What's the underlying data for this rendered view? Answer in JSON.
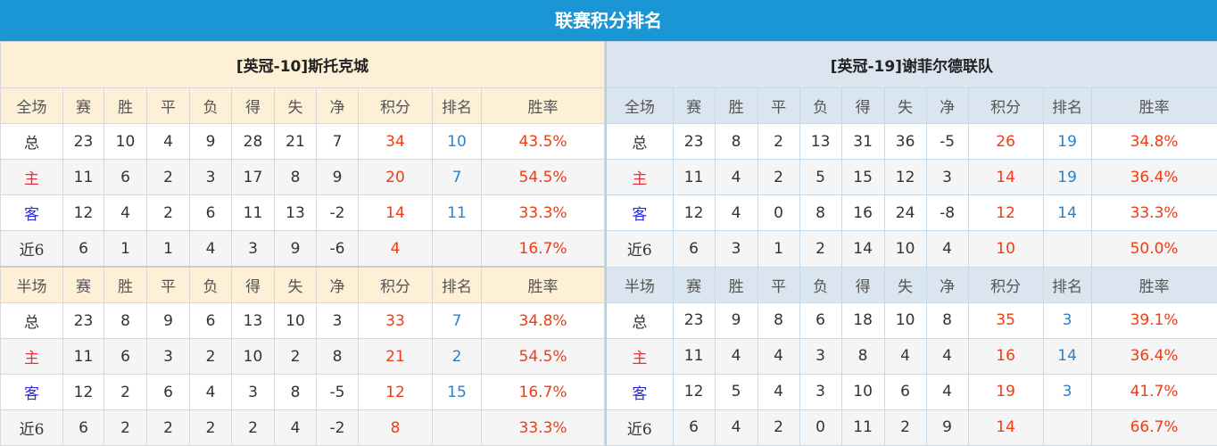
{
  "title": "联赛积分排名",
  "colors": {
    "title_bar": "#1a96d4",
    "points": "#f03c14",
    "rank": "#2e7fc7",
    "home": "#e8303a",
    "away": "#2a2ae0"
  },
  "columns": [
    "赛",
    "胜",
    "平",
    "负",
    "得",
    "失",
    "净",
    "积分",
    "排名",
    "胜率"
  ],
  "teams": [
    {
      "name": "[英冠-10]斯托克城",
      "sections": [
        {
          "label": "全场",
          "rows": [
            [
              "总",
              "23",
              "10",
              "4",
              "9",
              "28",
              "21",
              "7",
              "34",
              "10",
              "43.5%"
            ],
            [
              "主",
              "11",
              "6",
              "2",
              "3",
              "17",
              "8",
              "9",
              "20",
              "7",
              "54.5%"
            ],
            [
              "客",
              "12",
              "4",
              "2",
              "6",
              "11",
              "13",
              "-2",
              "14",
              "11",
              "33.3%"
            ],
            [
              "近6",
              "6",
              "1",
              "1",
              "4",
              "3",
              "9",
              "-6",
              "4",
              "",
              "16.7%"
            ]
          ]
        },
        {
          "label": "半场",
          "rows": [
            [
              "总",
              "23",
              "8",
              "9",
              "6",
              "13",
              "10",
              "3",
              "33",
              "7",
              "34.8%"
            ],
            [
              "主",
              "11",
              "6",
              "3",
              "2",
              "10",
              "2",
              "8",
              "21",
              "2",
              "54.5%"
            ],
            [
              "客",
              "12",
              "2",
              "6",
              "4",
              "3",
              "8",
              "-5",
              "12",
              "15",
              "16.7%"
            ],
            [
              "近6",
              "6",
              "2",
              "2",
              "2",
              "2",
              "4",
              "-2",
              "8",
              "",
              "33.3%"
            ]
          ]
        }
      ]
    },
    {
      "name": "[英冠-19]谢菲尔德联队",
      "sections": [
        {
          "label": "全场",
          "rows": [
            [
              "总",
              "23",
              "8",
              "2",
              "13",
              "31",
              "36",
              "-5",
              "26",
              "19",
              "34.8%"
            ],
            [
              "主",
              "11",
              "4",
              "2",
              "5",
              "15",
              "12",
              "3",
              "14",
              "19",
              "36.4%"
            ],
            [
              "客",
              "12",
              "4",
              "0",
              "8",
              "16",
              "24",
              "-8",
              "12",
              "14",
              "33.3%"
            ],
            [
              "近6",
              "6",
              "3",
              "1",
              "2",
              "14",
              "10",
              "4",
              "10",
              "",
              "50.0%"
            ]
          ]
        },
        {
          "label": "半场",
          "rows": [
            [
              "总",
              "23",
              "9",
              "8",
              "6",
              "18",
              "10",
              "8",
              "35",
              "3",
              "39.1%"
            ],
            [
              "主",
              "11",
              "4",
              "4",
              "3",
              "8",
              "4",
              "4",
              "16",
              "14",
              "36.4%"
            ],
            [
              "客",
              "12",
              "5",
              "4",
              "3",
              "10",
              "6",
              "4",
              "19",
              "3",
              "41.7%"
            ],
            [
              "近6",
              "6",
              "4",
              "2",
              "0",
              "11",
              "2",
              "9",
              "14",
              "",
              "66.7%"
            ]
          ]
        }
      ]
    }
  ]
}
